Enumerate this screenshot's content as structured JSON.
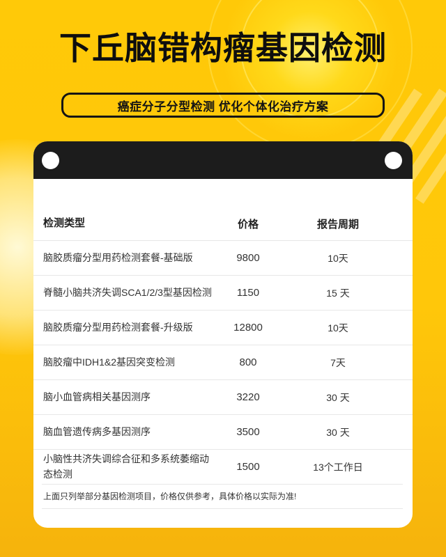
{
  "page": {
    "title": "下丘脑错构瘤基因检测",
    "subtitle": "癌症分子分型检测 优化个体化治疗方案"
  },
  "pricing_table": {
    "headers": {
      "type": "检测类型",
      "price": "价格",
      "period": "报告周期"
    },
    "rows": [
      {
        "name": "脑胶质瘤分型用药检测套餐-基础版",
        "price": "9800",
        "period": "10天"
      },
      {
        "name": "脊髓小脑共济失调SCA1/2/3型基因检测",
        "price": "1150",
        "period": "15 天"
      },
      {
        "name": "脑胶质瘤分型用药检测套餐-升级版",
        "price": "12800",
        "period": "10天"
      },
      {
        "name": "脑胶瘤中IDH1&2基因突变检测",
        "price": "800",
        "period": "7天"
      },
      {
        "name": "脑小血管病相关基因测序",
        "price": "3220",
        "period": "30 天"
      },
      {
        "name": "脑血管遗传病多基因测序",
        "price": "3500",
        "period": "30 天"
      },
      {
        "name": "小脑性共济失调综合征和多系统萎缩动态检测",
        "price": "1500",
        "period": "13个工作日"
      }
    ],
    "note": "上面只列举部分基因检测项目，价格仅供参考，具体价格以实际为准!"
  },
  "colors": {
    "background_top": "#ffc908",
    "background_bottom": "#f6b30c",
    "glow": "#ffef6e",
    "header_bar": "#1c1c1c",
    "card": "#ffffff",
    "title_text": "#0e0e0e",
    "body_text": "#333333",
    "divider": "#e7e7e7"
  }
}
